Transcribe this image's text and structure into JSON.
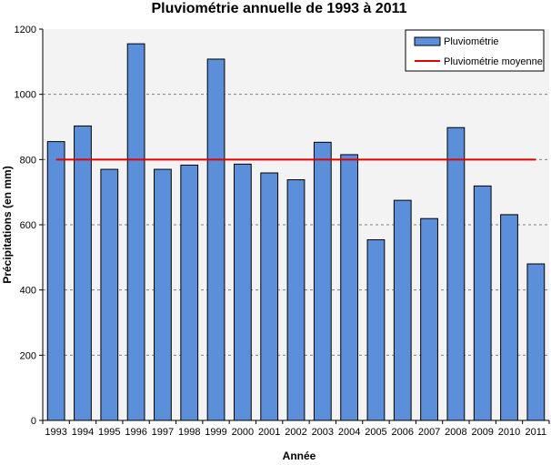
{
  "chart_data": {
    "type": "bar",
    "title": "Pluviométrie annuelle de 1993 à 2011",
    "xlabel": "Année",
    "ylabel": "Précipitations (en mm)",
    "ylim": [
      0,
      1200
    ],
    "yticks": [
      "0",
      "200",
      "400",
      "600",
      "800",
      "1000",
      "1200"
    ],
    "grid": true,
    "legend_position": "top-right",
    "categories": [
      "1993",
      "1994",
      "1995",
      "1996",
      "1997",
      "1998",
      "1999",
      "2000",
      "2001",
      "2002",
      "2003",
      "2004",
      "2005",
      "2006",
      "2007",
      "2008",
      "2009",
      "2010",
      "2011"
    ],
    "series": [
      {
        "name": "Pluviométrie",
        "type": "bar",
        "color": "#5B8FD9",
        "values": [
          855,
          903,
          770,
          1155,
          770,
          783,
          1108,
          786,
          759,
          738,
          853,
          815,
          554,
          675,
          619,
          898,
          719,
          631,
          480
        ]
      },
      {
        "name": "Pluviométrie moyenne",
        "type": "line",
        "color": "#E00000",
        "value": 800
      }
    ]
  }
}
